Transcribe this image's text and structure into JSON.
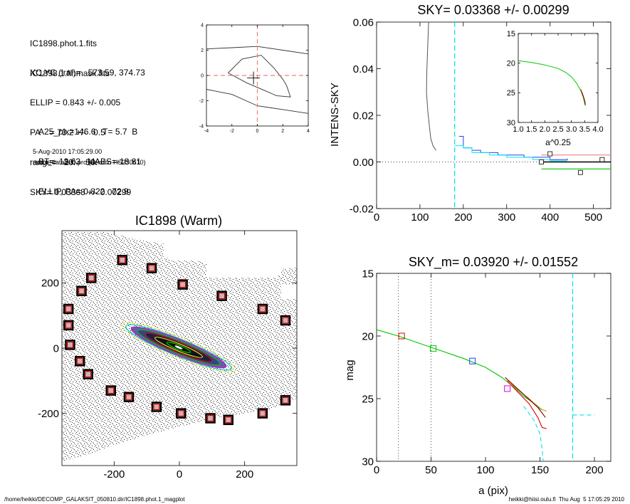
{
  "info": {
    "lines1": [
      "IC1898.phot.1.fits",
      "IC1898.1.finmask.fits"
    ],
    "lines2": [
      "XC,YC (iraf)=   573.59, 374.73",
      "ELLIP = 0.843 +/- 0.005",
      "PA    = 73.2 +/-   0.5",
      "range=   20.-   50.",
      "SKY= 0.03368 +/- 0.00299"
    ],
    "lines3": [
      "A25_pix=146.6   T= 5.7  B",
      "BT=  13.63   MABS=-18.81",
      "ELLIP, PA= 0.822   72.9"
    ],
    "date": "5-Aug-2010 17:05:29.00",
    "prog": "make_datalist0.pro (version HS230610)"
  },
  "footer": {
    "left": "/home/heikki/DECOMP_GALAKSIT_050810.dir/IC1898.phot.1_magplot",
    "right": "heikki@hiisi.oulu.fi  Thu Aug  5 17:05:29 2010"
  },
  "colors": {
    "cyan": "#00e5ee",
    "red": "#e00000",
    "green": "#00c800",
    "blue": "#2040ff",
    "magenta": "#e000e0",
    "orange": "#e09000",
    "pink": "#f08080",
    "grey": "#555555",
    "darkred": "#7a0000"
  },
  "chart_data": [
    {
      "id": "contour",
      "type": "contour",
      "xlim": [
        -4,
        4
      ],
      "ylim": [
        -4,
        4
      ],
      "xticks": [
        -4,
        -2,
        0,
        2,
        4
      ],
      "yticks": [
        -4,
        -2,
        0,
        2,
        4
      ],
      "xticklabels": [
        "-4",
        "-2",
        "0",
        "2",
        "4"
      ],
      "yticklabels": [
        "-4",
        "-2",
        "0",
        "2",
        "4"
      ],
      "contours": [
        [
          [
            -4,
            2.1
          ],
          [
            -2,
            2.2
          ],
          [
            0,
            2.3
          ],
          [
            2,
            2.0
          ],
          [
            4,
            1.7
          ]
        ],
        [
          [
            -2.3,
            0.2
          ],
          [
            -1.2,
            1.3
          ],
          [
            0.3,
            1.6
          ],
          [
            1.3,
            0.6
          ],
          [
            2,
            -0.3
          ],
          [
            2.3,
            -0.8
          ],
          [
            2.6,
            -1.7
          ],
          [
            1.5,
            -1.6
          ],
          [
            0.6,
            -1.2
          ],
          [
            -0.8,
            -0.6
          ],
          [
            -2.3,
            0.2
          ]
        ],
        [
          [
            -4,
            -1.1
          ],
          [
            -2,
            -1.5
          ],
          [
            0,
            -2.4
          ],
          [
            2,
            -2.7
          ],
          [
            4,
            -3.0
          ]
        ]
      ],
      "center": [
        -0.3,
        -0.2
      ]
    },
    {
      "id": "image",
      "type": "image",
      "title": "IC1898 (Warm)",
      "xlim": [
        -360,
        360
      ],
      "ylim": [
        -360,
        360
      ],
      "xticks": [
        -200,
        0,
        200
      ],
      "yticks": [
        -200,
        0,
        200
      ],
      "xticklabels": [
        "-200",
        "0",
        "200"
      ],
      "yticklabels": [
        "-200",
        "0",
        "200"
      ],
      "sky_boxes": [
        [
          -175,
          270
        ],
        [
          -85,
          245
        ],
        [
          -270,
          215
        ],
        [
          -300,
          175
        ],
        [
          10,
          195
        ],
        [
          130,
          160
        ],
        [
          -340,
          120
        ],
        [
          255,
          120
        ],
        [
          -340,
          70
        ],
        [
          325,
          85
        ],
        [
          -335,
          10
        ],
        [
          -305,
          -40
        ],
        [
          -280,
          -80
        ],
        [
          -210,
          -130
        ],
        [
          -155,
          -150
        ],
        [
          -70,
          -180
        ],
        [
          5,
          -200
        ],
        [
          95,
          -215
        ],
        [
          150,
          -220
        ],
        [
          255,
          -200
        ],
        [
          325,
          -160
        ]
      ]
    },
    {
      "id": "sky",
      "type": "line",
      "title": "SKY= 0.03368 +/- 0.00299",
      "ylabel": "INTENS-SKY",
      "xlim": [
        0,
        540
      ],
      "ylim": [
        -0.02,
        0.06
      ],
      "xticks": [
        0,
        100,
        200,
        300,
        400,
        500
      ],
      "yticks": [
        -0.02,
        0,
        0.02,
        0.04,
        0.06
      ],
      "xticklabels": [
        "0",
        "100",
        "200",
        "300",
        "400",
        "500"
      ],
      "yticklabels": [
        "-0.02",
        "0.00",
        "0.02",
        "0.04",
        "0.06"
      ],
      "series": [
        {
          "color": "#555555",
          "step": false,
          "points": [
            [
              120,
              0.06
            ],
            [
              118,
              0.05
            ],
            [
              116,
              0.04
            ],
            [
              115,
              0.03
            ],
            [
              118,
              0.022
            ],
            [
              122,
              0.015
            ],
            [
              125,
              0.01
            ],
            [
              130,
              0.007
            ],
            [
              137,
              0.005
            ]
          ]
        },
        {
          "color": "#2040ff",
          "step": true,
          "points": [
            [
              190,
              0.011
            ],
            [
              200,
              0.006
            ],
            [
              220,
              0.005
            ],
            [
              240,
              0.004
            ],
            [
              260,
              0.004
            ],
            [
              280,
              0.003
            ],
            [
              300,
              0.003
            ],
            [
              320,
              0.003
            ],
            [
              340,
              0.002
            ],
            [
              360,
              0.002
            ],
            [
              380,
              0.002
            ],
            [
              400,
              0.001
            ],
            [
              420,
              0.001
            ],
            [
              440,
              0.0015
            ]
          ]
        },
        {
          "color": "#00e5ee",
          "step": true,
          "points": [
            [
              180,
              0.007
            ],
            [
              200,
              0.006
            ],
            [
              220,
              0.004
            ],
            [
              240,
              0.004
            ],
            [
              260,
              0.003
            ],
            [
              280,
              0.003
            ],
            [
              300,
              0.002
            ],
            [
              320,
              0.002
            ],
            [
              340,
              0.002
            ],
            [
              360,
              0.001
            ],
            [
              380,
              0.001
            ],
            [
              400,
              0.0005
            ],
            [
              420,
              0.0005
            ],
            [
              440,
              0.0005
            ]
          ]
        }
      ],
      "vlines": [
        {
          "x": 180,
          "color": "#00e5ee"
        }
      ],
      "hlines": [
        {
          "y": 0.003,
          "x0": 380,
          "x1": 540,
          "color": "#f08080"
        },
        {
          "y": 0.0,
          "x0": 380,
          "x1": 540,
          "color": "#000000"
        },
        {
          "y": -0.003,
          "x0": 380,
          "x1": 540,
          "color": "#00c800"
        }
      ],
      "markers": [
        [
          380,
          0.0
        ],
        [
          400,
          0.0035
        ],
        [
          470,
          -0.0045
        ],
        [
          520,
          0.001
        ]
      ],
      "inset": {
        "xlabel": "a^0.25",
        "xlim": [
          1.0,
          4.0
        ],
        "ylim": [
          15,
          30
        ],
        "xticks": [
          1.0,
          1.5,
          2.0,
          2.5,
          3.0,
          3.5,
          4.0
        ],
        "xticklabels": [
          "1.0",
          "1.5",
          "2.0",
          "2.5",
          "3.0",
          "3.5",
          "4.0"
        ],
        "yticks": [
          15,
          20,
          25,
          30
        ],
        "yticklabels": [
          "15",
          "20",
          "25",
          "30"
        ],
        "curve": [
          [
            1.0,
            19.6
          ],
          [
            1.5,
            19.9
          ],
          [
            2.0,
            20.3
          ],
          [
            2.5,
            20.9
          ],
          [
            2.8,
            21.6
          ],
          [
            3.0,
            22.3
          ],
          [
            3.2,
            23.4
          ],
          [
            3.35,
            24.6
          ],
          [
            3.45,
            25.8
          ],
          [
            3.52,
            27.2
          ]
        ]
      }
    },
    {
      "id": "mag",
      "type": "line",
      "title": "SKY_m=  0.03920 +/- 0.01552",
      "xlabel": "a (pix)",
      "ylabel": "mag",
      "xlim": [
        0,
        215
      ],
      "ylim": [
        15,
        30
      ],
      "xticks": [
        0,
        50,
        100,
        150,
        200
      ],
      "yticks": [
        15,
        20,
        25,
        30
      ],
      "xticklabels": [
        "0",
        "50",
        "100",
        "150",
        "200"
      ],
      "yticklabels": [
        "15",
        "20",
        "25",
        "30"
      ],
      "series": [
        {
          "color": "#00c800",
          "points": [
            [
              0,
              19.5
            ],
            [
              20,
              20.0
            ],
            [
              40,
              20.6
            ],
            [
              60,
              21.2
            ],
            [
              80,
              21.8
            ],
            [
              100,
              22.5
            ],
            [
              115,
              23.3
            ],
            [
              125,
              24.0
            ],
            [
              135,
              24.8
            ],
            [
              145,
              25.4
            ],
            [
              152,
              25.9
            ]
          ]
        },
        {
          "color": "#e00000",
          "points": [
            [
              120,
              23.6
            ],
            [
              130,
              24.5
            ],
            [
              140,
              25.4
            ],
            [
              148,
              26.5
            ],
            [
              152,
              27.3
            ],
            [
              156,
              27.4
            ]
          ]
        },
        {
          "color": "#e09000",
          "points": [
            [
              120,
              23.5
            ],
            [
              130,
              24.3
            ],
            [
              140,
              25.0
            ],
            [
              150,
              25.8
            ],
            [
              156,
              26.0
            ]
          ]
        },
        {
          "color": "#7a0000",
          "points": [
            [
              118,
              23.3
            ],
            [
              128,
              24.1
            ],
            [
              138,
              24.9
            ],
            [
              148,
              25.7
            ],
            [
              155,
              26.5
            ]
          ]
        },
        {
          "color": "#00e5ee",
          "dashed": true,
          "points": [
            [
              135,
              25.6
            ],
            [
              145,
              26.8
            ],
            [
              150,
              27.8
            ],
            [
              152,
              29.0
            ],
            [
              153,
              30.0
            ]
          ]
        },
        {
          "color": "#00e5ee",
          "dashed": true,
          "points": [
            [
              180,
              26.3
            ],
            [
              200,
              26.3
            ]
          ]
        }
      ],
      "vlines": [
        {
          "x": 20,
          "color": "#333333",
          "dotted": true
        },
        {
          "x": 50,
          "color": "#333333",
          "dotted": true
        },
        {
          "x": 180,
          "color": "#00e5ee",
          "dashed": true
        }
      ],
      "markers": [
        {
          "x": 23,
          "y": 20.0,
          "color": "#e00000"
        },
        {
          "x": 52,
          "y": 21.0,
          "color": "#00c800"
        },
        {
          "x": 88,
          "y": 22.0,
          "color": "#2040ff"
        },
        {
          "x": 120,
          "y": 24.2,
          "color": "#e000e0"
        }
      ]
    }
  ]
}
